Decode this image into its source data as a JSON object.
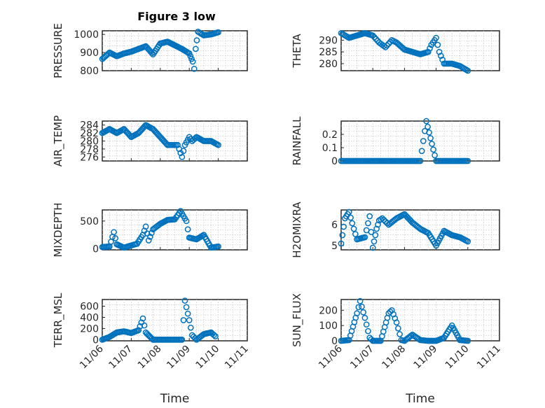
{
  "figure": {
    "title": "Figure 3 low",
    "marker_color": "#0072BD"
  },
  "chart_data": [
    {
      "type": "scatter",
      "id": "pressure",
      "title": "Figure 3 low",
      "xlabel": "",
      "ylabel": "PRESSURE",
      "ylim": [
        800,
        1020
      ],
      "yticks": [
        800,
        900,
        1000
      ],
      "xlim": [
        0,
        5
      ],
      "xticks": [
        0,
        1,
        2,
        3,
        4,
        5
      ],
      "xticklabels": [],
      "grid": true,
      "show_xticklabels": false,
      "series": [
        {
          "x": [
            0,
            0.25,
            0.5,
            0.75,
            1,
            1.25,
            1.5,
            1.75,
            2,
            2.25,
            2.5,
            2.75,
            3,
            3.12,
            3.17,
            3.22,
            3.3,
            3.5,
            3.75,
            4
          ],
          "y": [
            865,
            900,
            880,
            895,
            905,
            920,
            935,
            890,
            950,
            960,
            940,
            920,
            895,
            850,
            810,
            920,
            1015,
            995,
            1000,
            1012
          ]
        }
      ]
    },
    {
      "type": "scatter",
      "id": "theta",
      "xlabel": "",
      "ylabel": "THETA",
      "ylim": [
        277,
        294
      ],
      "yticks": [
        280,
        285,
        290
      ],
      "xlim": [
        0,
        5
      ],
      "xticks": [
        0,
        1,
        2,
        3,
        4,
        5
      ],
      "xticklabels": [],
      "grid": true,
      "show_xticklabels": false,
      "series": [
        {
          "x": [
            0,
            0.25,
            0.5,
            0.75,
            1,
            1.2,
            1.4,
            1.6,
            1.75,
            2,
            2.25,
            2.5,
            2.75,
            2.85,
            3.0,
            3.1,
            3.25,
            3.5,
            3.75,
            4
          ],
          "y": [
            293,
            291,
            292,
            293,
            292,
            289,
            287,
            290,
            289,
            286,
            285,
            284,
            285,
            288,
            291,
            285,
            280,
            280,
            279,
            277
          ]
        }
      ]
    },
    {
      "type": "scatter",
      "id": "air_temp",
      "xlabel": "",
      "ylabel": "AIR_TEMP",
      "ylim": [
        275,
        285
      ],
      "yticks": [
        276,
        278,
        280,
        282,
        284
      ],
      "xlim": [
        0,
        5
      ],
      "xticks": [
        0,
        1,
        2,
        3,
        4,
        5
      ],
      "xticklabels": [],
      "grid": true,
      "show_xticklabels": false,
      "series": [
        {
          "x": [
            0,
            0.25,
            0.5,
            0.75,
            1,
            1.25,
            1.5,
            1.75,
            2,
            2.25,
            2.4,
            2.6,
            2.75,
            2.85,
            3,
            3.1,
            3.25,
            3.5,
            3.75,
            4
          ],
          "y": [
            282,
            283,
            282,
            283,
            281,
            282,
            284,
            283,
            281,
            279,
            279,
            279,
            276,
            279,
            281,
            280,
            281,
            280,
            280,
            279
          ]
        }
      ]
    },
    {
      "type": "scatter",
      "id": "rainfall",
      "xlabel": "",
      "ylabel": "RAINFALL",
      "ylim": [
        0,
        0.3
      ],
      "yticks": [
        0,
        0.1,
        0.2
      ],
      "xlim": [
        0,
        5
      ],
      "xticks": [
        0,
        1,
        2,
        3,
        4,
        5
      ],
      "xticklabels": [],
      "grid": true,
      "show_xticklabels": false,
      "series": [
        {
          "x": [
            0,
            0.5,
            1,
            1.5,
            2,
            2.5,
            2.69,
            3,
            3.5,
            4
          ],
          "y": [
            0,
            0,
            0,
            0,
            0,
            0,
            0.3,
            0,
            0,
            0
          ]
        }
      ]
    },
    {
      "type": "scatter",
      "id": "mixdepth",
      "xlabel": "",
      "ylabel": "MIXDEPTH",
      "ylim": [
        -20,
        700
      ],
      "yticks": [
        0,
        500
      ],
      "xlim": [
        0,
        5
      ],
      "xticks": [
        0,
        1,
        2,
        3,
        4,
        5
      ],
      "xticklabels": [],
      "grid": true,
      "show_xticklabels": false,
      "series": [
        {
          "x": [
            0,
            0.25,
            0.4,
            0.5,
            0.75,
            1,
            1.2,
            1.4,
            1.5,
            1.6,
            1.75,
            2,
            2.25,
            2.5,
            2.7,
            2.9,
            3,
            3.25,
            3.5,
            3.75,
            4
          ],
          "y": [
            30,
            40,
            300,
            80,
            20,
            60,
            90,
            250,
            400,
            150,
            350,
            450,
            520,
            530,
            680,
            500,
            200,
            170,
            250,
            20,
            40
          ]
        }
      ]
    },
    {
      "type": "scatter",
      "id": "h2omixra",
      "xlabel": "",
      "ylabel": "H2OMIXRA",
      "ylim": [
        4.8,
        6.7
      ],
      "yticks": [
        5,
        6
      ],
      "xlim": [
        0,
        5
      ],
      "xticks": [
        0,
        1,
        2,
        3,
        4,
        5
      ],
      "xticklabels": [],
      "grid": true,
      "show_xticklabels": false,
      "series": [
        {
          "x": [
            0,
            0.12,
            0.25,
            0.4,
            0.5,
            0.75,
            0.9,
            1,
            1.12,
            1.2,
            1.3,
            1.5,
            1.75,
            2,
            2.25,
            2.5,
            2.75,
            3,
            3.25,
            3.5,
            3.75,
            4
          ],
          "y": [
            5.1,
            6.3,
            6.6,
            5.8,
            5.3,
            5.4,
            6.4,
            4.9,
            5.8,
            6.2,
            6.3,
            6.0,
            6.3,
            6.5,
            6.1,
            5.8,
            5.6,
            5.0,
            5.7,
            5.5,
            5.4,
            5.2
          ]
        }
      ]
    },
    {
      "type": "scatter",
      "id": "terr_msl",
      "xlabel": "Time",
      "ylabel": "TERR_MSL",
      "ylim": [
        -20,
        720
      ],
      "yticks": [
        0,
        200,
        400,
        600
      ],
      "xlim": [
        0,
        5
      ],
      "xticks": [
        0,
        1,
        2,
        3,
        4,
        5
      ],
      "xticklabels": [
        "11/06",
        "11/07",
        "11/08",
        "11/09",
        "11/10",
        "11/11"
      ],
      "grid": true,
      "show_xticklabels": true,
      "series": [
        {
          "x": [
            0,
            0.25,
            0.5,
            0.75,
            1,
            1.25,
            1.4,
            1.5,
            1.75,
            2,
            2.25,
            2.5,
            2.75,
            2.85,
            3,
            3.1,
            3.25,
            3.5,
            3.75,
            3.9
          ],
          "y": [
            0,
            50,
            130,
            150,
            120,
            170,
            380,
            130,
            0,
            0,
            0,
            0,
            0,
            700,
            350,
            80,
            0,
            100,
            130,
            60
          ]
        }
      ]
    },
    {
      "type": "scatter",
      "id": "sun_flux",
      "xlabel": "Time",
      "ylabel": "SUN_FLUX",
      "ylim": [
        0,
        270
      ],
      "yticks": [
        0,
        100,
        200
      ],
      "xlim": [
        0,
        5
      ],
      "xticks": [
        0,
        1,
        2,
        3,
        4,
        5
      ],
      "xticklabels": [
        "11/06",
        "11/07",
        "11/08",
        "11/09",
        "11/10",
        "11/11"
      ],
      "grid": true,
      "show_xticklabels": true,
      "series": [
        {
          "x": [
            0,
            0.25,
            0.5,
            0.6,
            0.75,
            0.9,
            1,
            1.25,
            1.5,
            1.6,
            1.75,
            1.9,
            2,
            2.25,
            2.5,
            2.75,
            3,
            3.25,
            3.5,
            3.75,
            4
          ],
          "y": [
            0,
            5,
            180,
            260,
            150,
            20,
            0,
            0,
            180,
            200,
            120,
            5,
            0,
            40,
            5,
            0,
            0,
            20,
            100,
            5,
            0
          ]
        }
      ]
    }
  ]
}
